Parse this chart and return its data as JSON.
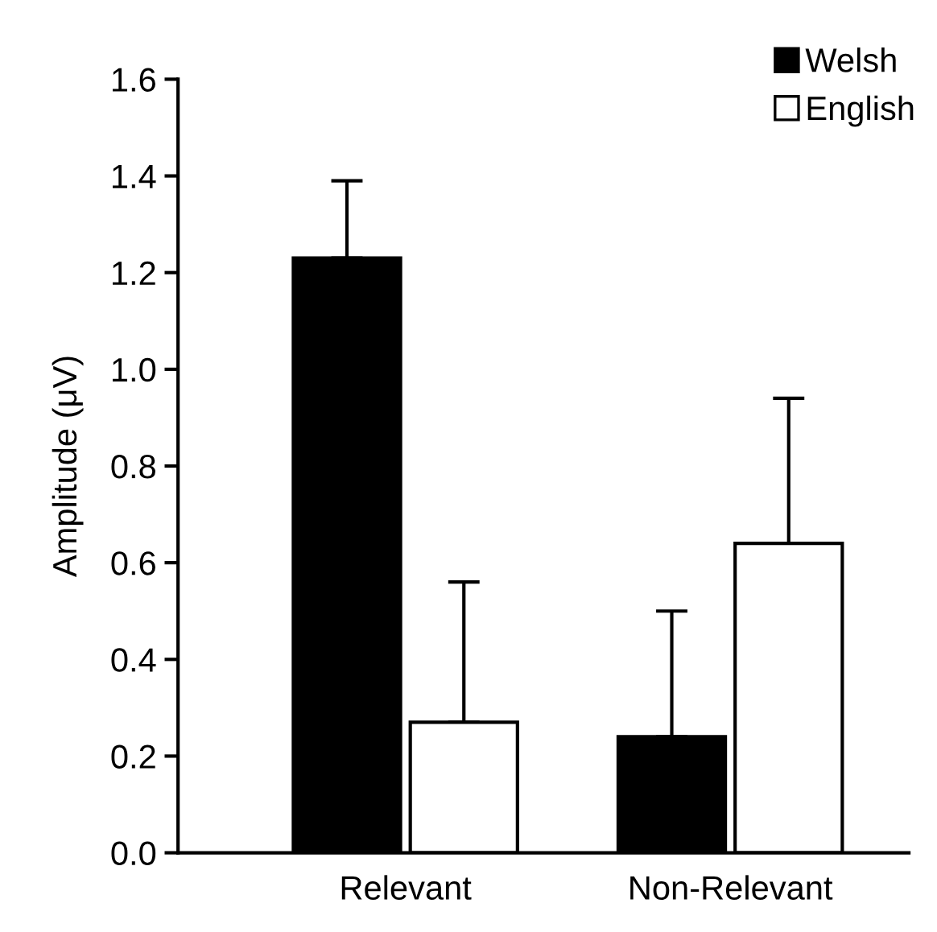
{
  "chart_data": {
    "type": "bar",
    "ylabel": "Amplitude (μV)",
    "categories": [
      "Relevant",
      "Non-Relevant"
    ],
    "series": [
      {
        "name": "Welsh",
        "color": "#000000",
        "values": [
          1.23,
          0.24
        ],
        "errors": [
          [
            1.23,
            1.39
          ],
          [
            0.24,
            0.5
          ]
        ]
      },
      {
        "name": "English",
        "color": "#ffffff",
        "values": [
          0.27,
          0.64
        ],
        "errors": [
          [
            0.27,
            0.56
          ],
          [
            0.64,
            0.94
          ]
        ]
      }
    ],
    "ylim": [
      0,
      1.6
    ],
    "yticks": [
      {
        "value": 0,
        "label": "0.0"
      },
      0.2,
      0.4,
      0.6,
      0.8,
      {
        "value": 1,
        "label": "1.0"
      },
      1.2,
      1.4,
      1.6
    ],
    "legend": "top right",
    "grid": false
  }
}
